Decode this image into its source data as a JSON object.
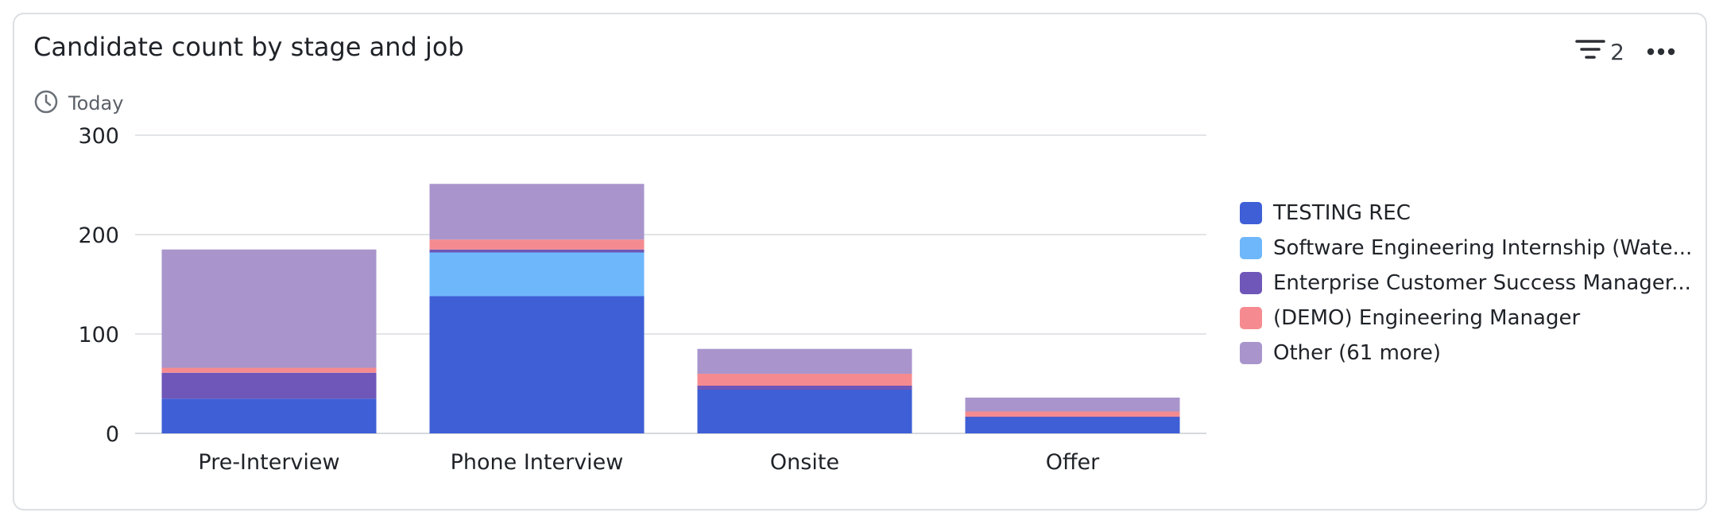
{
  "header": {
    "title": "Candidate count by stage and job",
    "subtitle": "Today",
    "filter_count": "2"
  },
  "icons": {
    "clock": "clock-icon",
    "filter": "filter-icon",
    "more": "more-horizontal-icon"
  },
  "chart_data": {
    "type": "bar",
    "stacked": true,
    "categories": [
      "Pre-Interview",
      "Phone Interview",
      "Onsite",
      "Offer"
    ],
    "series": [
      {
        "name": "TESTING REC",
        "color": "#3f5fd6",
        "values": [
          35,
          138,
          44,
          16
        ]
      },
      {
        "name": "Software Engineering Internship (Wate...",
        "color": "#6fb7fb",
        "values": [
          0,
          44,
          0,
          0
        ]
      },
      {
        "name": "Enterprise Customer Success Manager...",
        "color": "#6e57b8",
        "values": [
          26,
          3,
          4,
          1
        ]
      },
      {
        "name": "(DEMO) Engineering Manager",
        "color": "#f58b90",
        "values": [
          5,
          10,
          12,
          5
        ]
      },
      {
        "name": "Other (61 more)",
        "color": "#a995cc",
        "values": [
          119,
          56,
          25,
          14
        ]
      }
    ],
    "y_ticks": [
      0,
      100,
      200,
      300
    ],
    "ylim": [
      0,
      300
    ],
    "grid": true,
    "legend_position": "right"
  }
}
